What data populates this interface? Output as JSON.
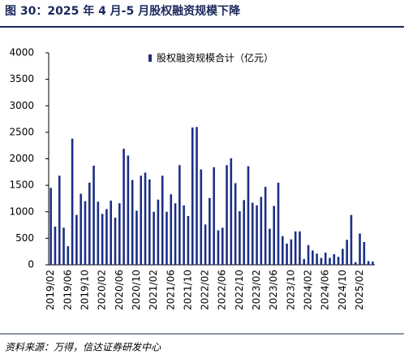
{
  "chart_data": {
    "type": "bar",
    "title": "图 30：2025 年 4 月-5 月股权融资规模下降",
    "source": "资料来源：万得，信达证券研发中心",
    "categories": [
      "2019/02",
      null,
      null,
      null,
      "2019/06",
      null,
      null,
      null,
      "2019/10",
      null,
      null,
      null,
      "2020/02",
      null,
      null,
      null,
      "2020/06",
      null,
      null,
      null,
      "2020/10",
      null,
      null,
      null,
      "2021/02",
      null,
      null,
      null,
      "2021/06",
      null,
      null,
      null,
      "2021/10",
      null,
      null,
      null,
      "2022/02",
      null,
      null,
      null,
      "2022/06",
      null,
      null,
      null,
      "2022/10",
      null,
      null,
      null,
      "2023/02",
      null,
      null,
      null,
      "2023/06",
      null,
      null,
      null,
      "2023/10",
      null,
      null,
      null,
      "2024/02",
      null,
      null,
      null,
      "2024/06",
      null,
      null,
      null,
      "2024/10",
      null,
      null,
      null,
      "2025/02",
      null,
      null,
      null
    ],
    "series": [
      {
        "name": "股权融资规模合计（亿元）",
        "color": "#1c2f86",
        "values": [
          1450,
          720,
          1680,
          700,
          350,
          2380,
          940,
          1340,
          1200,
          1550,
          1870,
          1190,
          960,
          1050,
          1210,
          890,
          1160,
          2190,
          2060,
          1600,
          1020,
          1680,
          1740,
          1610,
          1000,
          1230,
          1680,
          1000,
          1330,
          1160,
          1880,
          1120,
          920,
          2590,
          2600,
          1800,
          760,
          1260,
          1840,
          650,
          700,
          1880,
          2010,
          1540,
          1010,
          1220,
          1860,
          1170,
          1120,
          1280,
          1470,
          680,
          1110,
          1550,
          540,
          400,
          480,
          630,
          630,
          110,
          370,
          270,
          210,
          130,
          230,
          130,
          200,
          150,
          300,
          470,
          940,
          50,
          590,
          430,
          70,
          60
        ]
      }
    ],
    "ylim": [
      0,
      4000
    ],
    "yticks": [
      0,
      500,
      1000,
      1500,
      2000,
      2500,
      3000,
      3500,
      4000
    ],
    "legend": "top"
  }
}
